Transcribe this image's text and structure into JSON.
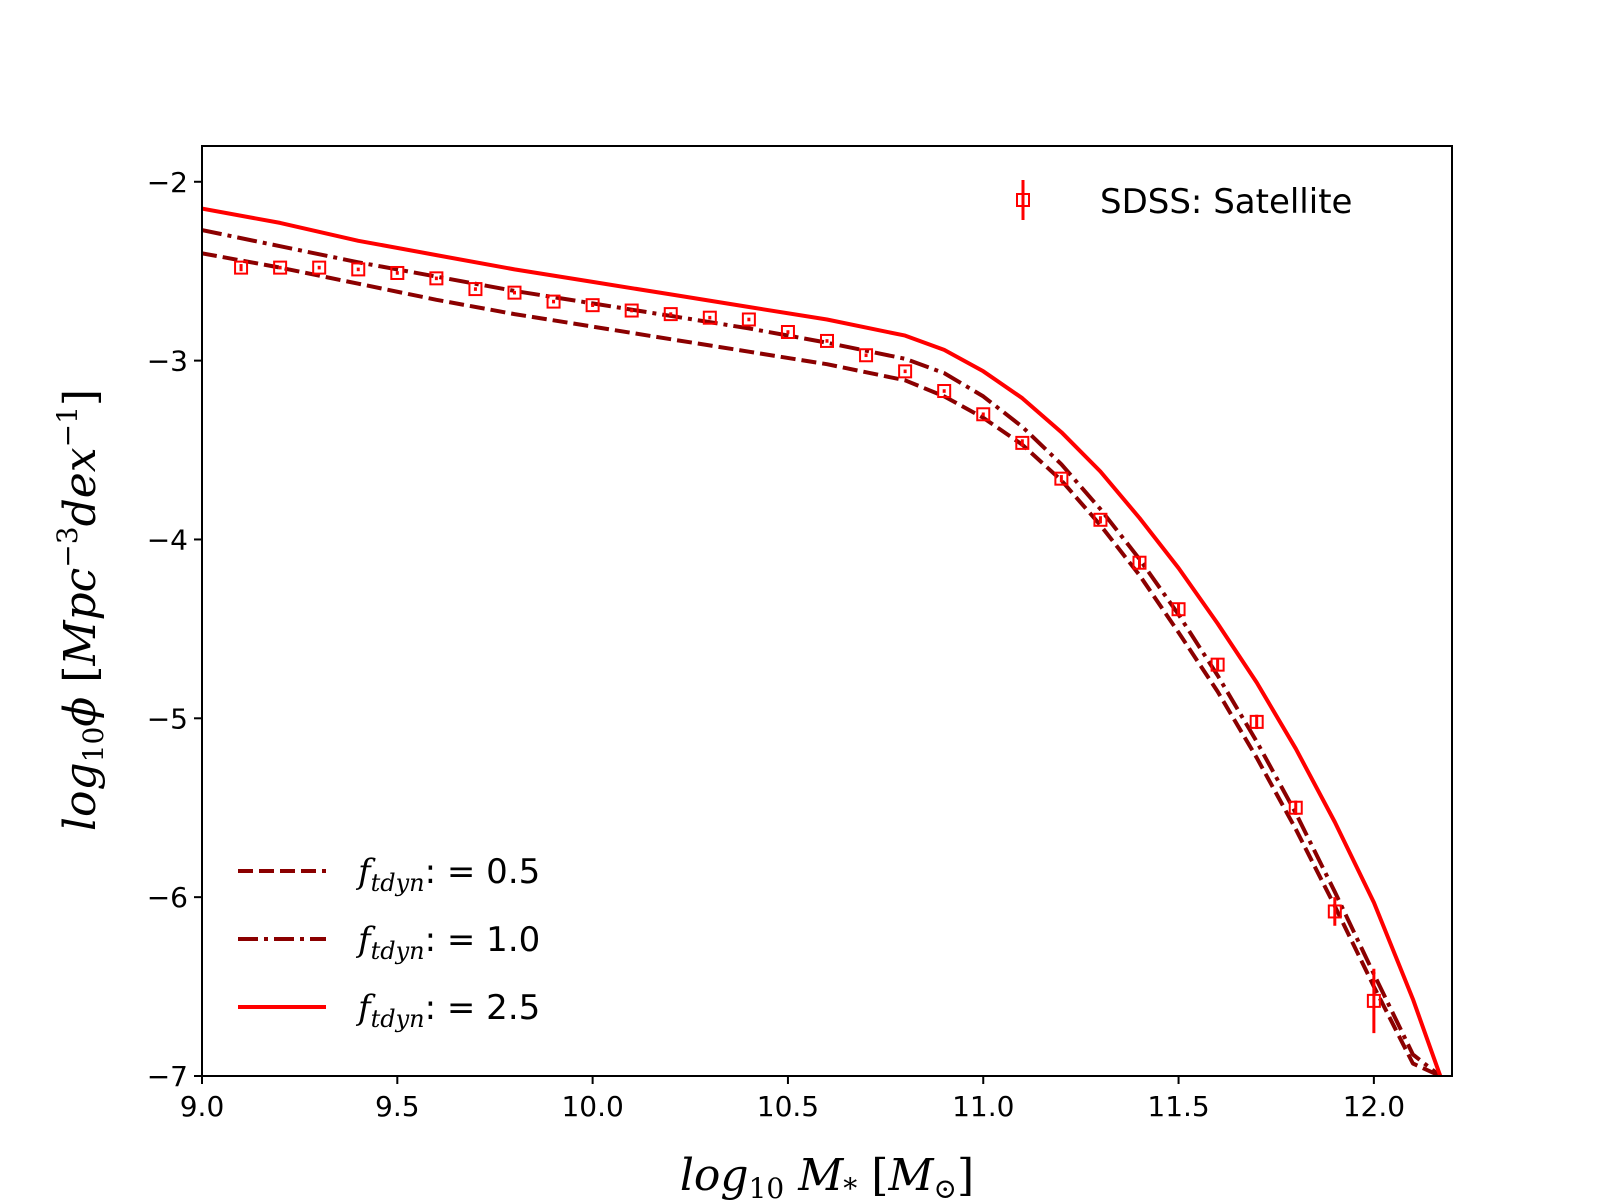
{
  "chart_data": {
    "type": "line",
    "title": "",
    "xlabel": {
      "base": "log",
      "sub": "10",
      "var": "M",
      "varsub": "*",
      "unit": "M",
      "unitsub": "⊙"
    },
    "ylabel": {
      "base": "log",
      "sub": "10",
      "var": "ϕ",
      "unit_main": "Mpc",
      "sup1": "−3",
      "unit_mid": "dex",
      "sup2": "−1"
    },
    "xlim": [
      9.0,
      12.2
    ],
    "ylim": [
      -7,
      -1.8
    ],
    "xticks": [
      9.0,
      9.5,
      10.0,
      10.5,
      11.0,
      11.5,
      12.0
    ],
    "xtick_labels": [
      "9.0",
      "9.5",
      "10.0",
      "10.5",
      "11.0",
      "11.5",
      "12.0"
    ],
    "yticks": [
      -7,
      -6,
      -5,
      -4,
      -3,
      -2
    ],
    "ytick_labels": [
      "−7",
      "−6",
      "−5",
      "−4",
      "−3",
      "−2"
    ],
    "legend_upper": {
      "position": "top-right",
      "label": "SDSS: Satellite"
    },
    "legend_lower": {
      "position": "bottom-left"
    },
    "series": [
      {
        "name": "f_tdyn = 0.5",
        "legend_base": "f",
        "legend_sub": "tdyn",
        "legend_value": ": = 0.5",
        "style": "dashed",
        "color": "#8b0000",
        "x": [
          9.0,
          9.2,
          9.4,
          9.6,
          9.8,
          10.0,
          10.2,
          10.4,
          10.6,
          10.8,
          10.9,
          11.0,
          11.1,
          11.2,
          11.3,
          11.4,
          11.5,
          11.6,
          11.7,
          11.8,
          11.9,
          12.0,
          12.1,
          12.17
        ],
        "y": [
          -2.4,
          -2.48,
          -2.57,
          -2.66,
          -2.74,
          -2.81,
          -2.88,
          -2.95,
          -3.02,
          -3.11,
          -3.2,
          -3.32,
          -3.47,
          -3.67,
          -3.92,
          -4.2,
          -4.52,
          -4.85,
          -5.22,
          -5.62,
          -6.05,
          -6.5,
          -6.93,
          -7.0
        ]
      },
      {
        "name": "f_tdyn = 1.0",
        "legend_base": "f",
        "legend_sub": "tdyn",
        "legend_value": ": = 1.0",
        "style": "dashdot",
        "color": "#8b0000",
        "x": [
          9.0,
          9.2,
          9.4,
          9.6,
          9.8,
          10.0,
          10.2,
          10.4,
          10.6,
          10.8,
          10.9,
          11.0,
          11.1,
          11.2,
          11.3,
          11.4,
          11.5,
          11.6,
          11.7,
          11.8,
          11.9,
          12.0,
          12.1,
          12.17
        ],
        "y": [
          -2.27,
          -2.36,
          -2.45,
          -2.53,
          -2.61,
          -2.68,
          -2.75,
          -2.82,
          -2.9,
          -2.99,
          -3.07,
          -3.2,
          -3.37,
          -3.58,
          -3.83,
          -4.11,
          -4.42,
          -4.76,
          -5.13,
          -5.53,
          -5.97,
          -6.43,
          -6.88,
          -7.0
        ]
      },
      {
        "name": "f_tdyn = 2.5",
        "legend_base": "f",
        "legend_sub": "tdyn",
        "legend_value": ": = 2.5",
        "style": "solid",
        "color": "#ff0000",
        "x": [
          9.0,
          9.2,
          9.4,
          9.6,
          9.8,
          10.0,
          10.2,
          10.4,
          10.6,
          10.8,
          10.9,
          11.0,
          11.1,
          11.2,
          11.3,
          11.4,
          11.5,
          11.6,
          11.7,
          11.8,
          11.9,
          12.0,
          12.1,
          12.17
        ],
        "y": [
          -2.15,
          -2.23,
          -2.33,
          -2.41,
          -2.49,
          -2.56,
          -2.63,
          -2.7,
          -2.77,
          -2.86,
          -2.94,
          -3.06,
          -3.21,
          -3.4,
          -3.62,
          -3.88,
          -4.16,
          -4.47,
          -4.8,
          -5.17,
          -5.58,
          -6.03,
          -6.57,
          -7.0
        ]
      }
    ],
    "observations": {
      "name": "SDSS: Satellite",
      "marker": "open-square",
      "color": "#ff0000",
      "x": [
        9.1,
        9.2,
        9.3,
        9.4,
        9.5,
        9.6,
        9.7,
        9.8,
        9.9,
        10.0,
        10.1,
        10.2,
        10.3,
        10.4,
        10.5,
        10.6,
        10.7,
        10.8,
        10.9,
        11.0,
        11.1,
        11.2,
        11.3,
        11.4,
        11.5,
        11.6,
        11.7,
        11.8,
        11.9,
        12.0
      ],
      "y": [
        -2.48,
        -2.48,
        -2.48,
        -2.49,
        -2.51,
        -2.54,
        -2.6,
        -2.62,
        -2.67,
        -2.69,
        -2.72,
        -2.74,
        -2.76,
        -2.77,
        -2.84,
        -2.89,
        -2.97,
        -3.06,
        -3.17,
        -3.3,
        -3.46,
        -3.66,
        -3.89,
        -4.13,
        -4.39,
        -4.7,
        -5.02,
        -5.5,
        -6.08,
        -6.58
      ],
      "yerr": [
        0.02,
        0.01,
        0.01,
        0.01,
        0.01,
        0.01,
        0.01,
        0.01,
        0.01,
        0.01,
        0.01,
        0.01,
        0.01,
        0.01,
        0.01,
        0.01,
        0.01,
        0.01,
        0.01,
        0.01,
        0.02,
        0.02,
        0.02,
        0.03,
        0.03,
        0.03,
        0.04,
        0.04,
        0.08,
        0.18
      ]
    }
  }
}
